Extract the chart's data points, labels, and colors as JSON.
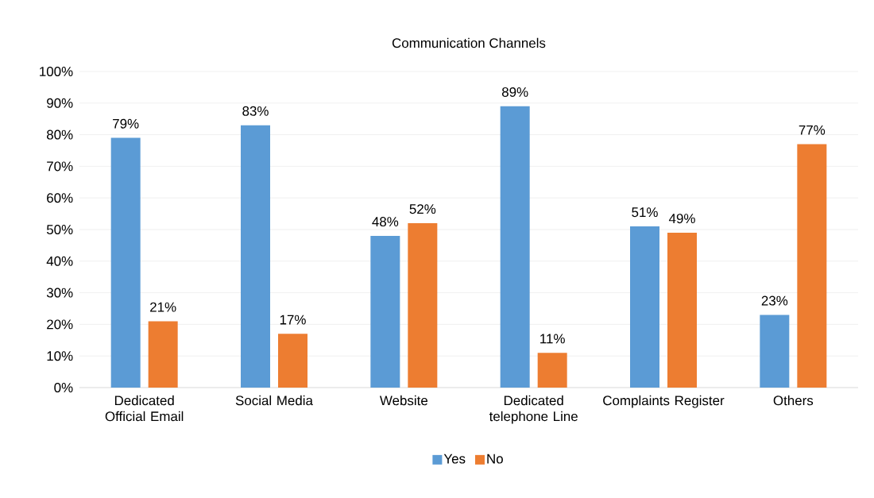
{
  "chart_data": {
    "type": "bar",
    "title": "Communication Channels",
    "categories": [
      "Dedicated Official Email",
      "Social Media",
      "Website",
      "Dedicated telephone Line",
      "Complaints Register",
      "Others"
    ],
    "series": [
      {
        "name": "Yes",
        "color": "#5b9bd5",
        "values": [
          79,
          83,
          48,
          89,
          51,
          23
        ],
        "value_labels": [
          "79%",
          "83%",
          "48%",
          "89%",
          "51%",
          "23%"
        ]
      },
      {
        "name": "No",
        "color": "#ed7d31",
        "values": [
          21,
          17,
          52,
          11,
          49,
          77
        ],
        "value_labels": [
          "21%",
          "17%",
          "52%",
          "11%",
          "49%",
          "77%"
        ]
      }
    ],
    "ylim": [
      0,
      100
    ],
    "yticks": [
      {
        "value": 0,
        "label": "0%"
      },
      {
        "value": 10,
        "label": "10%"
      },
      {
        "value": 20,
        "label": "20%"
      },
      {
        "value": 30,
        "label": "30%"
      },
      {
        "value": 40,
        "label": "40%"
      },
      {
        "value": 50,
        "label": "50%"
      },
      {
        "value": 60,
        "label": "60%"
      },
      {
        "value": 70,
        "label": "70%"
      },
      {
        "value": 80,
        "label": "80%"
      },
      {
        "value": 90,
        "label": "90%"
      },
      {
        "value": 100,
        "label": "100%"
      }
    ],
    "grid": "y",
    "legend": "bottom"
  }
}
